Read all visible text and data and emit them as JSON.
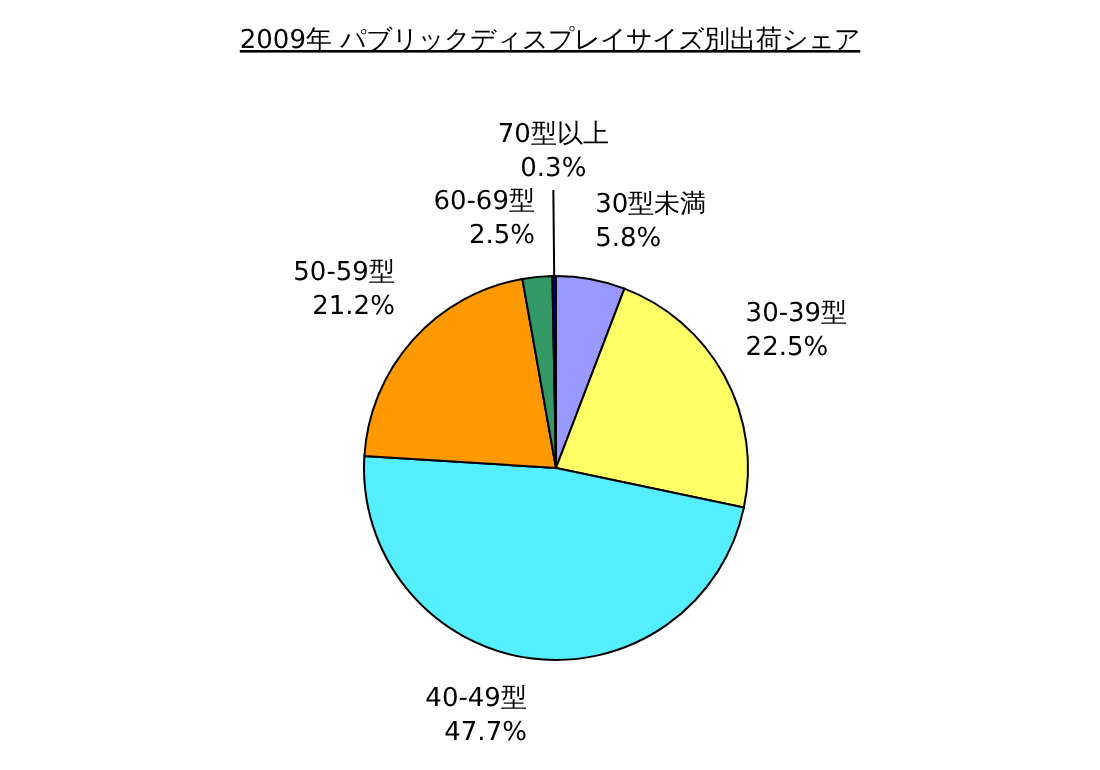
{
  "chart_data": {
    "type": "pie",
    "title": "2009年 パブリックディスプレイサイズ別出荷シェア",
    "categories": [
      "30型未満",
      "30-39型",
      "40-49型",
      "50-59型",
      "60-69型",
      "70型以上"
    ],
    "values": [
      5.8,
      22.5,
      47.7,
      21.2,
      2.5,
      0.3
    ],
    "colors": [
      "#9999ff",
      "#ffff66",
      "#55eeff",
      "#ff9900",
      "#339966",
      "#000080"
    ],
    "value_labels": [
      "5.8%",
      "22.5%",
      "47.7%",
      "21.2%",
      "2.5%",
      "0.3%"
    ]
  }
}
